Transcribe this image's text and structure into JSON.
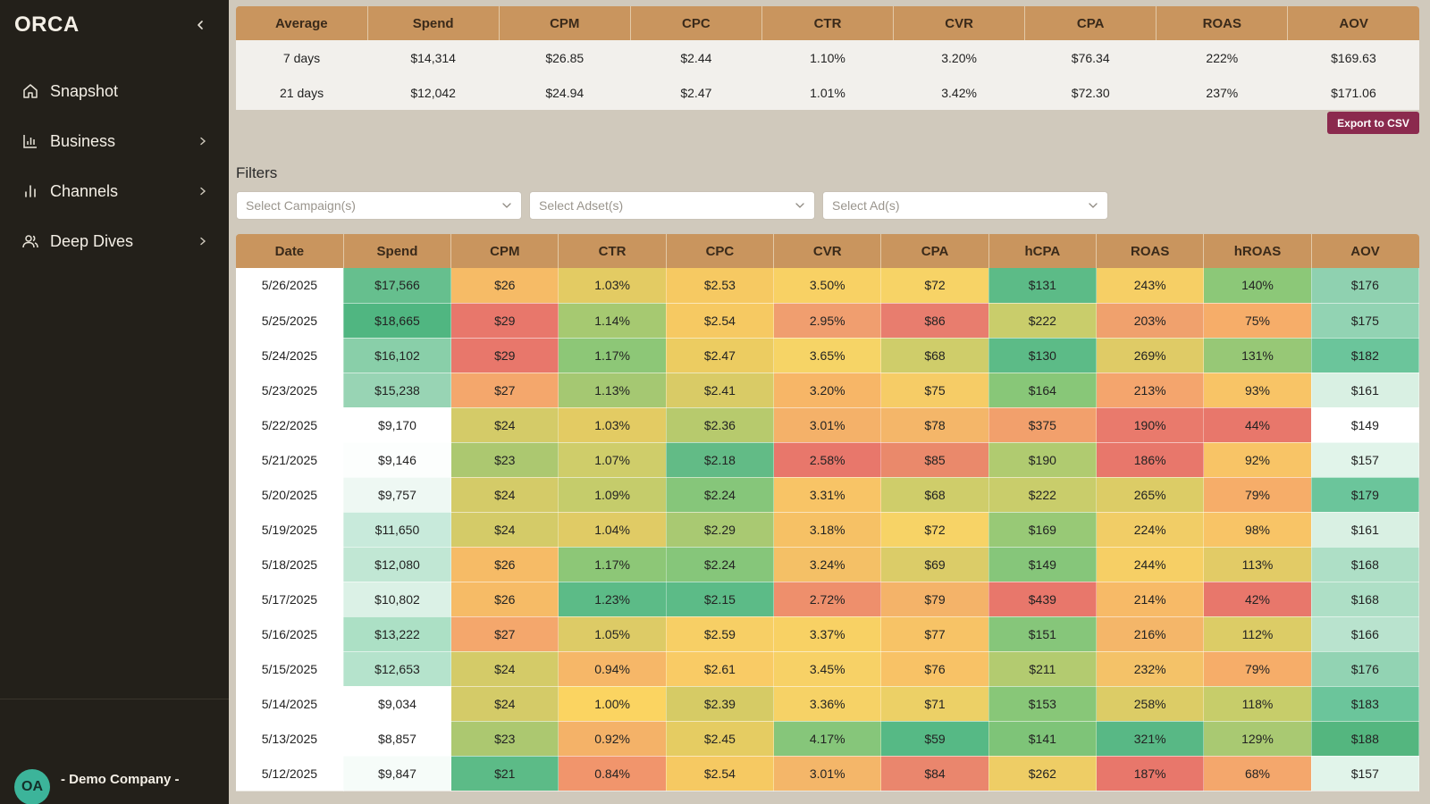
{
  "app": {
    "brand": "ORCA",
    "company": "- Demo Company -",
    "avatar_initials": "OA"
  },
  "sidebar": {
    "items": [
      {
        "label": "Snapshot",
        "icon": "home-icon",
        "has_children": false
      },
      {
        "label": "Business",
        "icon": "bar-chart-icon",
        "has_children": true
      },
      {
        "label": "Channels",
        "icon": "bar-chart-icon",
        "has_children": true
      },
      {
        "label": "Deep Dives",
        "icon": "users-icon",
        "has_children": true
      }
    ]
  },
  "averages": {
    "headers": [
      "Average",
      "Spend",
      "CPM",
      "CPC",
      "CTR",
      "CVR",
      "CPA",
      "ROAS",
      "AOV"
    ],
    "rows": [
      [
        "7 days",
        "$14,314",
        "$26.85",
        "$2.44",
        "1.10%",
        "3.20%",
        "$76.34",
        "222%",
        "$169.63"
      ],
      [
        "21 days",
        "$12,042",
        "$24.94",
        "$2.47",
        "1.01%",
        "3.42%",
        "$72.30",
        "237%",
        "$171.06"
      ]
    ]
  },
  "export_button": "Export to CSV",
  "filters": {
    "title": "Filters",
    "campaign_placeholder": "Select Campaign(s)",
    "adset_placeholder": "Select Adset(s)",
    "ad_placeholder": "Select Ad(s)"
  },
  "daily": {
    "headers": [
      "Date",
      "Spend",
      "CPM",
      "CTR",
      "CPC",
      "CVR",
      "CPA",
      "hCPA",
      "ROAS",
      "hROAS",
      "AOV"
    ],
    "rows": [
      [
        "5/26/2025",
        "$17,566",
        "$26",
        "1.03%",
        "$2.53",
        "3.50%",
        "$72",
        "$131",
        "243%",
        "140%",
        "$176"
      ],
      [
        "5/25/2025",
        "$18,665",
        "$29",
        "1.14%",
        "$2.54",
        "2.95%",
        "$86",
        "$222",
        "203%",
        "75%",
        "$175"
      ],
      [
        "5/24/2025",
        "$16,102",
        "$29",
        "1.17%",
        "$2.47",
        "3.65%",
        "$68",
        "$130",
        "269%",
        "131%",
        "$182"
      ],
      [
        "5/23/2025",
        "$15,238",
        "$27",
        "1.13%",
        "$2.41",
        "3.20%",
        "$75",
        "$164",
        "213%",
        "93%",
        "$161"
      ],
      [
        "5/22/2025",
        "$9,170",
        "$24",
        "1.03%",
        "$2.36",
        "3.01%",
        "$78",
        "$375",
        "190%",
        "44%",
        "$149"
      ],
      [
        "5/21/2025",
        "$9,146",
        "$23",
        "1.07%",
        "$2.18",
        "2.58%",
        "$85",
        "$190",
        "186%",
        "92%",
        "$157"
      ],
      [
        "5/20/2025",
        "$9,757",
        "$24",
        "1.09%",
        "$2.24",
        "3.31%",
        "$68",
        "$222",
        "265%",
        "79%",
        "$179"
      ],
      [
        "5/19/2025",
        "$11,650",
        "$24",
        "1.04%",
        "$2.29",
        "3.18%",
        "$72",
        "$169",
        "224%",
        "98%",
        "$161"
      ],
      [
        "5/18/2025",
        "$12,080",
        "$26",
        "1.17%",
        "$2.24",
        "3.24%",
        "$69",
        "$149",
        "244%",
        "113%",
        "$168"
      ],
      [
        "5/17/2025",
        "$10,802",
        "$26",
        "1.23%",
        "$2.15",
        "2.72%",
        "$79",
        "$439",
        "214%",
        "42%",
        "$168"
      ],
      [
        "5/16/2025",
        "$13,222",
        "$27",
        "1.05%",
        "$2.59",
        "3.37%",
        "$77",
        "$151",
        "216%",
        "112%",
        "$166"
      ],
      [
        "5/15/2025",
        "$12,653",
        "$24",
        "0.94%",
        "$2.61",
        "3.45%",
        "$76",
        "$211",
        "232%",
        "79%",
        "$176"
      ],
      [
        "5/14/2025",
        "$9,034",
        "$24",
        "1.00%",
        "$2.39",
        "3.36%",
        "$71",
        "$153",
        "258%",
        "118%",
        "$183"
      ],
      [
        "5/13/2025",
        "$8,857",
        "$23",
        "0.92%",
        "$2.45",
        "4.17%",
        "$59",
        "$141",
        "321%",
        "129%",
        "$188"
      ],
      [
        "5/12/2025",
        "$9,847",
        "$21",
        "0.84%",
        "$2.54",
        "3.01%",
        "$84",
        "$262",
        "187%",
        "68%",
        "$157"
      ]
    ],
    "colors": [
      [
        null,
        "#66bf8e",
        "#f6bb66",
        "#e3cb63",
        "#f6c962",
        "#f8d164",
        "#f7d366",
        "#5cbb87",
        "#f6cf65",
        "#8cc878",
        "#8fd1b0"
      ],
      [
        null,
        "#50b681",
        "#e8776b",
        "#a6c971",
        "#f6c962",
        "#f09e6f",
        "#e87d6e",
        "#c9cd6b",
        "#f0a16d",
        "#f6ad69",
        "#92d3b3"
      ],
      [
        null,
        "#89cfa9",
        "#e8776b",
        "#8dc777",
        "#eccc61",
        "#f6d466",
        "#cfcd6a",
        "#5cbb87",
        "#dfcb66",
        "#97c876",
        "#6bc59b"
      ],
      [
        null,
        "#98d4b4",
        "#f4a76c",
        "#a5c872",
        "#d9cb66",
        "#f7b667",
        "#f6cc66",
        "#88c778",
        "#f4a56d",
        "#f8c466",
        "#d9f0e3"
      ],
      [
        null,
        "#ffffff",
        "#d4cb68",
        "#e3cb63",
        "#b7ca6d",
        "#f4b169",
        "#f4b669",
        "#f2a06c",
        "#e97a6c",
        "#e8776b",
        "#ffffff"
      ],
      [
        null,
        "#fcfefd",
        "#acc870",
        "#cfcd6a",
        "#62bb86",
        "#e8776b",
        "#ea896b",
        "#b0cb70",
        "#e8776b",
        "#f8c466",
        "#e1f4ea"
      ],
      [
        null,
        "#eef8f3",
        "#d4cb68",
        "#c5cc6b",
        "#86c67a",
        "#f8c466",
        "#cfcd6a",
        "#c9cd6b",
        "#dccc66",
        "#f6ad69",
        "#6bc59b"
      ],
      [
        null,
        "#c8eadb",
        "#d4cb68",
        "#e0cb65",
        "#a9c972",
        "#f6c165",
        "#f7d366",
        "#98c976",
        "#f1cd66",
        "#f8c466",
        "#d9f0e3"
      ],
      [
        null,
        "#c1e7d4",
        "#f6bb66",
        "#8dc777",
        "#86c67a",
        "#f4c066",
        "#dbcc68",
        "#86c67a",
        "#f6cf65",
        "#e2cb66",
        "#aedfc6"
      ],
      [
        null,
        "#dbf1e6",
        "#f6bb66",
        "#5cbb87",
        "#5cbb87",
        "#ee8f6c",
        "#f4b369",
        "#e8776b",
        "#f7ba67",
        "#e8776b",
        "#aedfc6"
      ],
      [
        null,
        "#ace0c5",
        "#f4a76c",
        "#ddcb66",
        "#f7cf65",
        "#f8d164",
        "#f7c366",
        "#86c67a",
        "#f4b669",
        "#dccc66",
        "#b9e3ce"
      ],
      [
        null,
        "#b5e3cc",
        "#d4cb68",
        "#f6b768",
        "#f9cb65",
        "#f7d166",
        "#f8c266",
        "#b3cb70",
        "#f4c268",
        "#f6ad69",
        "#92d3b3"
      ],
      [
        null,
        "#ffffff",
        "#d4cb68",
        "#fbd461",
        "#d6cb65",
        "#f6d266",
        "#ecd066",
        "#88c778",
        "#dccc66",
        "#c7cd6a",
        "#6bc59b"
      ],
      [
        null,
        "#ffffff",
        "#acc870",
        "#f4b268",
        "#e5cc62",
        "#86c67a",
        "#56b985",
        "#7ec478",
        "#58b885",
        "#a9c972",
        "#54b67f"
      ],
      [
        null,
        "#f6fcf9",
        "#5cbb87",
        "#f1956c",
        "#f6c962",
        "#f4b669",
        "#ea866d",
        "#eecd65",
        "#e8776b",
        "#f4a76c",
        "#e1f4ea"
      ]
    ]
  }
}
